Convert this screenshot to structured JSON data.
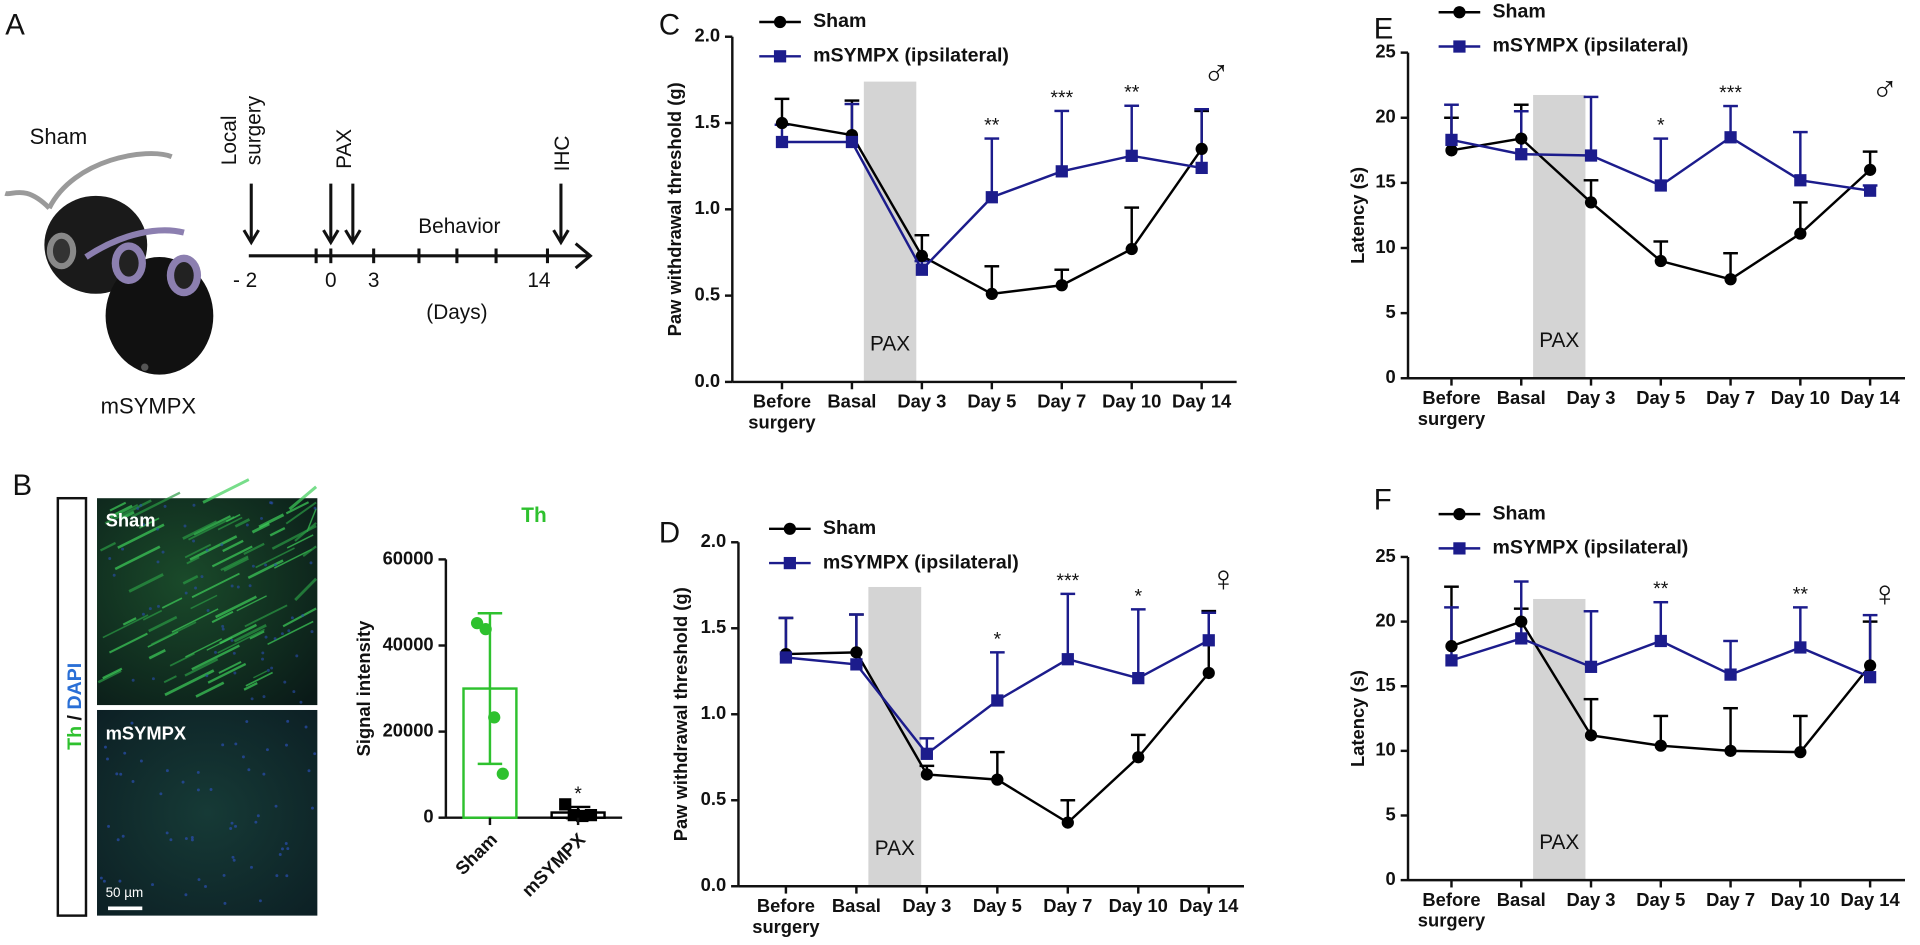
{
  "panel_a": {
    "label": "A",
    "groups": [
      "Sham",
      "mSYMPX"
    ],
    "surgery_label": [
      "Local",
      "surgery"
    ],
    "pax_label": "PAX",
    "ihc_label": "IHC",
    "behavior_label": "Behavior",
    "axis_label": "(Days)",
    "ticks": [
      "- 2",
      "0",
      "3",
      "14"
    ]
  },
  "panel_b": {
    "label": "B",
    "stain": [
      "Th",
      "/",
      "DAPI"
    ],
    "images": [
      "Sham",
      "mSYMPX"
    ],
    "scale_bar": "50 µm"
  },
  "chart_data": [
    {
      "type": "bar",
      "title": "Th",
      "y_label": "Signal intensity",
      "categories": [
        "Sham",
        "mSYMPX"
      ],
      "values": [
        30000,
        1200
      ],
      "errors": [
        17500,
        1300
      ],
      "points": [
        [
          45200,
          43800,
          23300,
          10200
        ],
        [
          3100,
          600,
          400,
          600
        ]
      ],
      "point_markers": [
        "circle",
        "square"
      ],
      "colors": [
        "#2ec12e",
        "#000000"
      ],
      "significance": [
        null,
        "*"
      ],
      "ylim": [
        0,
        60000
      ],
      "yticks": [
        0,
        20000,
        40000,
        60000
      ]
    },
    {
      "type": "line",
      "panel": "C",
      "y_label": "Paw withdrawal threshold (g)",
      "categories": [
        "Before surgery",
        "Basal",
        "Day 3",
        "Day 5",
        "Day 7",
        "Day 10",
        "Day 14"
      ],
      "series": [
        {
          "name": "Sham",
          "color": "#000000",
          "marker": "circle",
          "values": [
            1.5,
            1.43,
            0.73,
            0.51,
            0.56,
            0.77,
            1.35
          ],
          "errors": [
            0.14,
            0.2,
            0.12,
            0.16,
            0.09,
            0.24,
            0.22
          ]
        },
        {
          "name": "mSYMPX (ipsilateral)",
          "color": "#1c1c8c",
          "marker": "square",
          "values": [
            1.39,
            1.39,
            0.65,
            1.07,
            1.22,
            1.31,
            1.24
          ],
          "errors": [
            0.1,
            0.22,
            0.05,
            0.34,
            0.35,
            0.29,
            0.34
          ]
        }
      ],
      "significance": [
        null,
        null,
        null,
        "**",
        "***",
        "**",
        null
      ],
      "symbol": "♂",
      "shaded_label": "PAX",
      "ylim": [
        0,
        2.0
      ],
      "yticks": [
        {
          "value": 0,
          "label": "0.0"
        },
        0.5,
        {
          "value": 1,
          "label": "1.0"
        },
        1.5,
        {
          "value": 2,
          "label": "2.0"
        }
      ]
    },
    {
      "type": "line",
      "panel": "D",
      "y_label": "Paw withdrawal threshold (g)",
      "categories": [
        "Before surgery",
        "Basal",
        "Day 3",
        "Day 5",
        "Day 7",
        "Day 10",
        "Day 14"
      ],
      "series": [
        {
          "name": "Sham",
          "color": "#000000",
          "marker": "circle",
          "values": [
            1.35,
            1.36,
            0.65,
            0.62,
            0.37,
            0.75,
            1.24
          ],
          "errors": [
            0.21,
            0.22,
            0.05,
            0.16,
            0.13,
            0.13,
            0.36
          ]
        },
        {
          "name": "mSYMPX (ipsilateral)",
          "color": "#1c1c8c",
          "marker": "square",
          "values": [
            1.33,
            1.29,
            0.77,
            1.08,
            1.32,
            1.21,
            1.43
          ],
          "errors": [
            0.23,
            0.29,
            0.09,
            0.28,
            0.38,
            0.4,
            0.16
          ]
        }
      ],
      "significance": [
        null,
        null,
        null,
        "*",
        "***",
        "*",
        null
      ],
      "symbol": "♀",
      "shaded_label": "PAX",
      "ylim": [
        0,
        2.0
      ],
      "yticks": [
        {
          "value": 0,
          "label": "0.0"
        },
        0.5,
        {
          "value": 1,
          "label": "1.0"
        },
        1.5,
        {
          "value": 2,
          "label": "2.0"
        }
      ]
    },
    {
      "type": "line",
      "panel": "E",
      "y_label": "Latency (s)",
      "categories": [
        "Before surgery",
        "Basal",
        "Day 3",
        "Day 5",
        "Day 7",
        "Day 10",
        "Day 14"
      ],
      "series": [
        {
          "name": "Sham",
          "color": "#000000",
          "marker": "circle",
          "values": [
            17.5,
            18.4,
            13.5,
            9.0,
            7.6,
            11.1,
            16.0
          ],
          "errors": [
            2.5,
            2.6,
            1.7,
            1.5,
            2.0,
            2.4,
            1.4
          ]
        },
        {
          "name": "mSYMPX (ipsilateral)",
          "color": "#1c1c8c",
          "marker": "square",
          "values": [
            18.3,
            17.2,
            17.1,
            14.8,
            18.5,
            15.2,
            14.4
          ],
          "errors": [
            2.7,
            3.3,
            4.5,
            3.6,
            2.4,
            3.7,
            0.4
          ]
        }
      ],
      "significance": [
        null,
        null,
        null,
        "*",
        "***",
        null,
        null
      ],
      "symbol": "♂",
      "shaded_label": "PAX",
      "ylim": [
        0,
        25
      ],
      "yticks": [
        0,
        5,
        10,
        15,
        20,
        25
      ]
    },
    {
      "type": "line",
      "panel": "F",
      "y_label": "Latency (s)",
      "categories": [
        "Before surgery",
        "Basal",
        "Day 3",
        "Day 5",
        "Day 7",
        "Day 10",
        "Day 14"
      ],
      "series": [
        {
          "name": "Sham",
          "color": "#000000",
          "marker": "circle",
          "values": [
            18.1,
            20.0,
            11.2,
            10.4,
            10.0,
            9.9,
            16.6
          ],
          "errors": [
            4.6,
            1.0,
            2.8,
            2.3,
            3.3,
            2.8,
            3.4
          ]
        },
        {
          "name": "mSYMPX (ipsilateral)",
          "color": "#1c1c8c",
          "marker": "square",
          "values": [
            17.0,
            18.7,
            16.5,
            18.5,
            15.9,
            18.0,
            15.7
          ],
          "errors": [
            4.1,
            4.4,
            4.3,
            3.0,
            2.6,
            3.1,
            4.8
          ]
        }
      ],
      "significance": [
        null,
        null,
        null,
        "**",
        null,
        "**",
        null
      ],
      "symbol": "♀",
      "shaded_label": "PAX",
      "ylim": [
        0,
        25
      ],
      "yticks": [
        0,
        5,
        10,
        15,
        20,
        25
      ]
    }
  ]
}
